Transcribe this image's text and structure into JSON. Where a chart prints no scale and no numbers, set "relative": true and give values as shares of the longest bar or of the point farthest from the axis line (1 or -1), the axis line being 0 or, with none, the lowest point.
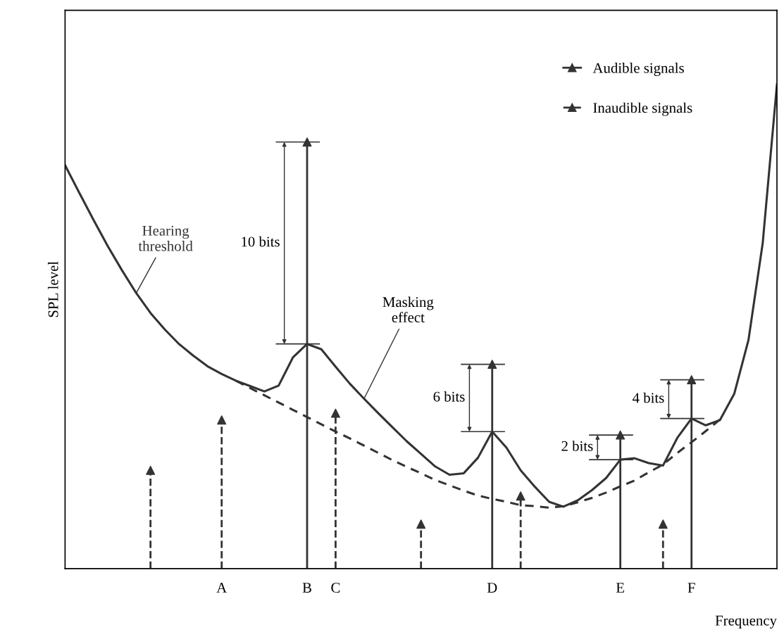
{
  "chart_data": {
    "type": "line",
    "relative": true,
    "xlabel": "Frequency",
    "ylabel": "SPL level",
    "tick_labels": "x",
    "legend": "top right",
    "categories": [
      null,
      null,
      null,
      null,
      null,
      null,
      null,
      null,
      null,
      null,
      null,
      "A",
      null,
      null,
      null,
      null,
      null,
      "B",
      null,
      "C",
      null,
      null,
      null,
      null,
      null,
      null,
      null,
      null,
      null,
      null,
      "D",
      null,
      null,
      null,
      null,
      null,
      null,
      null,
      null,
      "E",
      null,
      null,
      null,
      null,
      "F",
      null,
      null,
      null,
      null,
      null,
      null
    ],
    "series": [
      {
        "name": "Hearing threshold",
        "color": "#333333",
        "line_style": "solid",
        "marker": "none",
        "values": [
          0.833,
          0.776,
          0.72,
          0.666,
          0.616,
          0.569,
          0.528,
          0.494,
          0.464,
          0.44,
          0.418,
          0.402,
          0.388,
          0.377,
          0.366,
          0.378,
          0.436,
          0.464,
          0.453,
          0.417,
          0.382,
          0.351,
          0.321,
          0.292,
          0.263,
          0.237,
          0.211,
          0.194,
          0.197,
          0.229,
          0.283,
          0.25,
          0.203,
          0.169,
          0.138,
          0.128,
          0.141,
          0.162,
          0.187,
          0.225,
          0.228,
          0.218,
          0.213,
          0.27,
          0.31,
          0.296,
          0.307,
          0.361,
          0.472,
          0.672,
          1.0
        ]
      },
      {
        "color": "#333333",
        "line_style": "dashed",
        "marker": "none",
        "values": [
          null,
          null,
          null,
          null,
          null,
          null,
          null,
          null,
          null,
          null,
          null,
          null,
          0.388,
          0.373,
          0.358,
          0.343,
          0.328,
          0.313,
          0.298,
          0.283,
          0.269,
          0.254,
          0.239,
          0.224,
          0.21,
          0.197,
          0.183,
          0.172,
          0.161,
          0.151,
          0.144,
          0.138,
          0.131,
          0.129,
          0.126,
          0.129,
          0.137,
          0.146,
          0.157,
          0.17,
          0.182,
          0.199,
          0.215,
          0.239,
          0.261,
          0.284,
          0.308,
          null,
          null,
          null,
          null
        ]
      },
      {
        "type": "lollipop",
        "name": "Audible signals",
        "color": "#333333",
        "line_style": "solid",
        "marker": "triangle",
        "values": [
          null,
          null,
          null,
          null,
          null,
          null,
          null,
          null,
          null,
          null,
          null,
          null,
          null,
          null,
          null,
          null,
          null,
          0.881,
          null,
          null,
          null,
          null,
          null,
          null,
          null,
          null,
          null,
          null,
          null,
          null,
          0.422,
          null,
          null,
          null,
          null,
          null,
          null,
          null,
          null,
          0.276,
          null,
          null,
          null,
          null,
          0.39,
          null,
          null,
          null,
          null,
          null,
          null
        ]
      },
      {
        "type": "lollipop",
        "name": "Inaudible signals",
        "color": "#333333",
        "line_style": "dashed",
        "marker": "triangle",
        "values": [
          null,
          null,
          null,
          null,
          null,
          null,
          0.203,
          null,
          null,
          null,
          null,
          0.307,
          null,
          null,
          null,
          null,
          null,
          null,
          null,
          0.321,
          null,
          null,
          null,
          null,
          null,
          0.092,
          null,
          null,
          null,
          null,
          null,
          null,
          0.15,
          null,
          null,
          null,
          null,
          null,
          null,
          null,
          null,
          null,
          0.092,
          null,
          null,
          null,
          null,
          null,
          null,
          null,
          null
        ]
      }
    ],
    "annotations": [
      "Masking\neffect",
      "10 bits",
      "6 bits",
      "2 bits",
      "4 bits"
    ]
  }
}
